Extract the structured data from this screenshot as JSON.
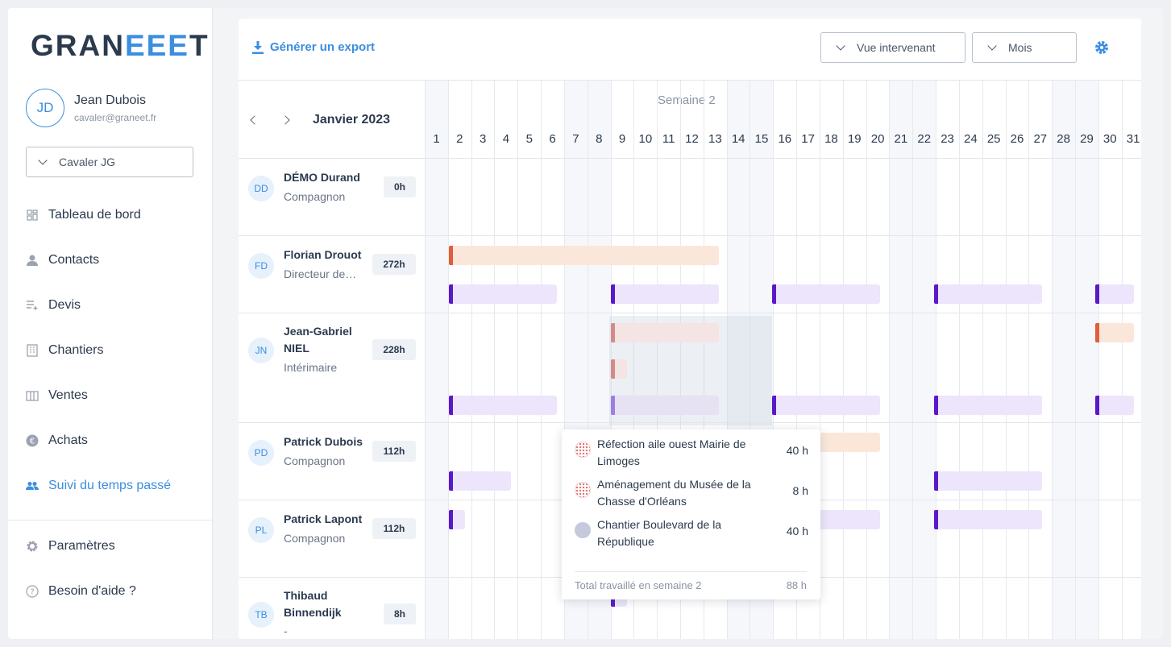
{
  "brand": {
    "logo_prefix": "GRAN",
    "logo_mid": "EEE",
    "logo_suffix": "T"
  },
  "user": {
    "initials": "JD",
    "name": "Jean Dubois",
    "email": "cavaler@graneet.fr"
  },
  "company_select": {
    "value": "Cavaler JG"
  },
  "sidebar": {
    "items": [
      {
        "label": "Tableau de bord",
        "icon": "dashboard-icon"
      },
      {
        "label": "Contacts",
        "icon": "person-icon"
      },
      {
        "label": "Devis",
        "icon": "quote-icon"
      },
      {
        "label": "Chantiers",
        "icon": "building-icon"
      },
      {
        "label": "Ventes",
        "icon": "columns-icon"
      },
      {
        "label": "Achats",
        "icon": "euro-icon"
      },
      {
        "label": "Suivi du temps passé",
        "icon": "people-icon",
        "active": true
      }
    ],
    "bottom": [
      {
        "label": "Paramètres",
        "icon": "gear-icon"
      },
      {
        "label": "Besoin d'aide ?",
        "icon": "help-icon"
      }
    ]
  },
  "toolbar": {
    "export_label": "Générer un export",
    "view_select": "Vue intervenant",
    "period_select": "Mois"
  },
  "calendar": {
    "month": "Janvier 2023",
    "week_label": "Semaine 2",
    "days": [
      "1",
      "2",
      "3",
      "4",
      "5",
      "6",
      "7",
      "8",
      "9",
      "10",
      "11",
      "12",
      "13",
      "14",
      "15",
      "16",
      "17",
      "18",
      "19",
      "20",
      "21",
      "22",
      "23",
      "24",
      "25",
      "26",
      "27",
      "28",
      "29",
      "30",
      "31"
    ]
  },
  "people": [
    {
      "initials": "DD",
      "name": "DÉMO Durand",
      "role": "Compagnon",
      "hours": "0h"
    },
    {
      "initials": "FD",
      "name": "Florian Drouot",
      "role": "Directeur de…",
      "hours": "272h"
    },
    {
      "initials": "JN",
      "name": "Jean-Gabriel NIEL",
      "role": "Intérimaire",
      "hours": "228h"
    },
    {
      "initials": "PD",
      "name": "Patrick Dubois",
      "role": "Compagnon",
      "hours": "112h"
    },
    {
      "initials": "PL",
      "name": "Patrick Lapont",
      "role": "Compagnon",
      "hours": "112h"
    },
    {
      "initials": "TB",
      "name": "Thibaud Binnendijk",
      "role": "-",
      "hours": "8h"
    }
  ],
  "tooltip": {
    "rows": [
      {
        "name": "Réfection aile ouest Mairie de Limoges",
        "hours": "40 h"
      },
      {
        "name": "Aménagement du Musée de la Chasse d'Orléans",
        "hours": "8 h"
      },
      {
        "name": "Chantier Boulevard de la République",
        "hours": "40 h"
      }
    ],
    "total_label": "Total travaillé en semaine 2",
    "total_hours": "88 h"
  },
  "colors": {
    "accent": "#3b8ee0",
    "bar_orange": "#e05e3b",
    "bar_purple": "#5a19c9"
  }
}
